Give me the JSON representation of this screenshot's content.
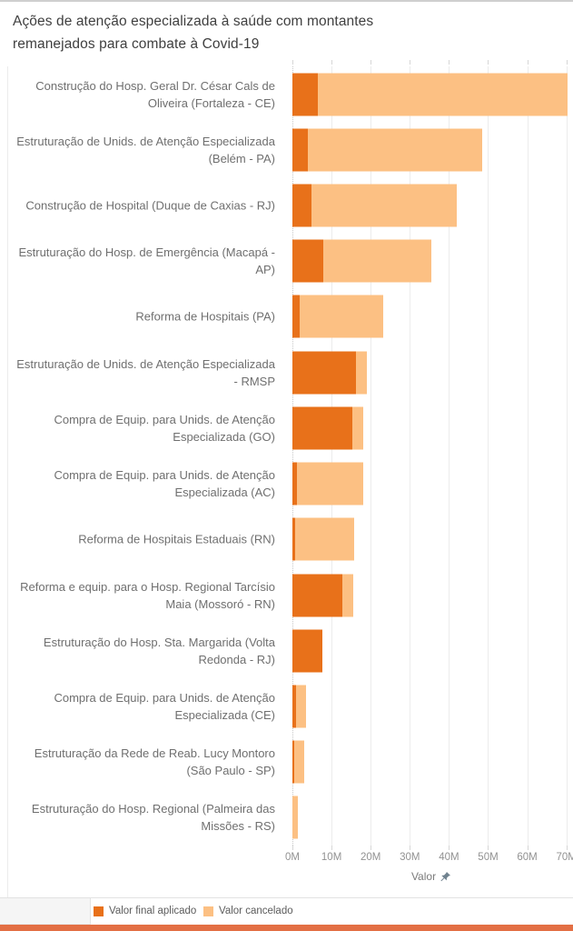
{
  "header": {
    "title": "Ações de atenção especializada à saúde com montantes remanejados para combate à Covid-19"
  },
  "chart_data": {
    "type": "bar",
    "orientation": "horizontal",
    "stacked": true,
    "title": "Ações de atenção especializada à saúde com montantes remanejados para combate à Covid-19",
    "categories": [
      "Construção do Hosp. Geral Dr. César Cals de Oliveira (Fortaleza - CE)",
      "Estruturação de Unids. de Atenção Especializada (Belém - PA)",
      "Construção de Hospital (Duque de Caxias - RJ)",
      "Estruturação do Hosp. de Emergência (Macapá - AP)",
      "Reforma de Hospitais (PA)",
      "Estruturação de Unids. de Atenção Especializada - RMSP",
      "Compra de Equip. para Unids. de Atenção Especializada (GO)",
      "Compra de Equip. para Unids. de Atenção Especializada (AC)",
      "Reforma de Hospitais Estaduais (RN)",
      "Reforma e equip. para o Hosp. Regional Tarcísio Maia (Mossoró - RN)",
      "Estruturação do Hosp. Sta. Margarida (Volta Redonda - RJ)",
      "Compra de Equip. para Unids. de Atenção Especializada (CE)",
      "Estruturação da Rede de Reab. Lucy Montoro (São Paulo - SP)",
      "Estruturação do Hosp. Regional (Palmeira das Missões - RS)"
    ],
    "series": [
      {
        "name": "Valor final aplicado",
        "color": "#e8711a",
        "unit": "M",
        "values": [
          6.6,
          4.0,
          4.9,
          7.9,
          1.9,
          16.3,
          15.3,
          1.1,
          0.8,
          12.7,
          7.6,
          1.0,
          0.5,
          0
        ]
      },
      {
        "name": "Valor cancelado",
        "color": "#fcc083",
        "unit": "M",
        "values": [
          63.6,
          44.4,
          37.0,
          27.5,
          21.2,
          2.7,
          2.8,
          17.0,
          14.9,
          2.8,
          0,
          2.5,
          2.5,
          1.4
        ]
      }
    ],
    "xlabel": "Valor",
    "x_ticks": [
      "0M",
      "10M",
      "20M",
      "30M",
      "40M",
      "50M",
      "60M",
      "70M"
    ],
    "x_tick_values": [
      0,
      10,
      20,
      30,
      40,
      50,
      60,
      70
    ],
    "xlim": [
      0,
      71
    ],
    "grid": true,
    "legend_position": "bottom"
  },
  "axis": {
    "pin_icon": "pin-icon"
  },
  "colors": {
    "aplicado": "#e8711a",
    "cancelado": "#fcc083",
    "footer_strip": "#e36f44",
    "gridline": "#ececec",
    "title_text": "#3f3f3f",
    "label_text": "#6f6f6f",
    "tick_text": "#929292"
  }
}
